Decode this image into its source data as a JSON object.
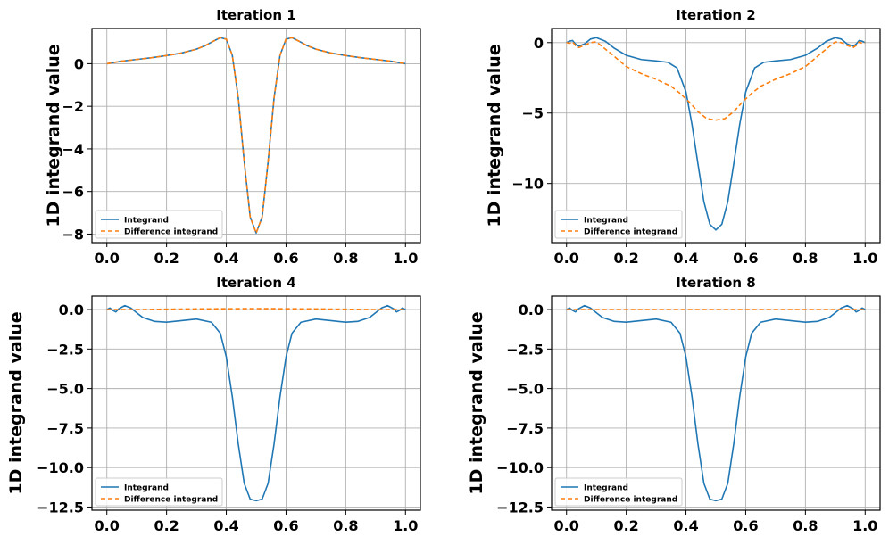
{
  "colors": {
    "integrand": "#1f77b4",
    "difference": "#ff7f0e",
    "grid": "#b0b0b0",
    "axis": "#000000"
  },
  "chart_data": [
    {
      "type": "line",
      "title": "Iteration 1",
      "xlabel": "",
      "ylabel": "1D integrand value",
      "xlim": [
        -0.05,
        1.05
      ],
      "ylim": [
        -8.4,
        1.65
      ],
      "xticks": [
        0.0,
        0.2,
        0.4,
        0.6,
        0.8,
        1.0
      ],
      "xtick_labels": [
        "0.0",
        "0.2",
        "0.4",
        "0.6",
        "0.8",
        "1.0"
      ],
      "yticks": [
        0,
        -2,
        -4,
        -6,
        -8
      ],
      "ytick_labels": [
        "0",
        "−2",
        "−4",
        "−6",
        "−8"
      ],
      "legend": {
        "position": "lower-left",
        "entries": [
          "Integrand",
          "Difference integrand"
        ]
      },
      "series": [
        {
          "name": "Integrand",
          "style": "solid",
          "x": [
            0.0,
            0.05,
            0.1,
            0.15,
            0.2,
            0.25,
            0.3,
            0.33,
            0.36,
            0.38,
            0.4,
            0.42,
            0.44,
            0.46,
            0.48,
            0.5,
            0.52,
            0.54,
            0.56,
            0.58,
            0.6,
            0.62,
            0.64,
            0.67,
            0.7,
            0.75,
            0.8,
            0.85,
            0.9,
            0.95,
            1.0
          ],
          "y": [
            0.0,
            0.12,
            0.2,
            0.28,
            0.38,
            0.5,
            0.68,
            0.85,
            1.08,
            1.22,
            1.15,
            0.4,
            -1.6,
            -4.6,
            -7.2,
            -7.95,
            -7.2,
            -4.6,
            -1.6,
            0.4,
            1.15,
            1.22,
            1.08,
            0.85,
            0.68,
            0.5,
            0.38,
            0.28,
            0.2,
            0.12,
            0.0
          ]
        },
        {
          "name": "Difference integrand",
          "style": "dashed",
          "x": [
            0.0,
            0.05,
            0.1,
            0.15,
            0.2,
            0.25,
            0.3,
            0.33,
            0.36,
            0.38,
            0.4,
            0.42,
            0.44,
            0.46,
            0.48,
            0.5,
            0.52,
            0.54,
            0.56,
            0.58,
            0.6,
            0.62,
            0.64,
            0.67,
            0.7,
            0.75,
            0.8,
            0.85,
            0.9,
            0.95,
            1.0
          ],
          "y": [
            0.0,
            0.12,
            0.2,
            0.28,
            0.38,
            0.5,
            0.68,
            0.85,
            1.08,
            1.22,
            1.15,
            0.4,
            -1.6,
            -4.6,
            -7.2,
            -7.95,
            -7.2,
            -4.6,
            -1.6,
            0.4,
            1.15,
            1.22,
            1.08,
            0.85,
            0.68,
            0.5,
            0.38,
            0.28,
            0.2,
            0.12,
            0.0
          ]
        }
      ]
    },
    {
      "type": "line",
      "title": "Iteration 2",
      "xlabel": "",
      "ylabel": "1D integrand value",
      "xlim": [
        -0.05,
        1.05
      ],
      "ylim": [
        -14.2,
        1.0
      ],
      "xticks": [
        0.0,
        0.2,
        0.4,
        0.6,
        0.8,
        1.0
      ],
      "xtick_labels": [
        "0.0",
        "0.2",
        "0.4",
        "0.6",
        "0.8",
        "1.0"
      ],
      "yticks": [
        0,
        -5,
        -10
      ],
      "ytick_labels": [
        "0",
        "−5",
        "−10"
      ],
      "legend": {
        "position": "lower-left",
        "entries": [
          "Integrand",
          "Difference integrand"
        ]
      },
      "series": [
        {
          "name": "Integrand",
          "style": "solid",
          "x": [
            0.0,
            0.01,
            0.02,
            0.03,
            0.04,
            0.06,
            0.08,
            0.1,
            0.13,
            0.16,
            0.2,
            0.25,
            0.3,
            0.34,
            0.37,
            0.4,
            0.42,
            0.44,
            0.46,
            0.48,
            0.5,
            0.52,
            0.54,
            0.56,
            0.58,
            0.6,
            0.63,
            0.66,
            0.7,
            0.75,
            0.8,
            0.84,
            0.87,
            0.9,
            0.92,
            0.94,
            0.96,
            0.97,
            0.98,
            0.99,
            1.0
          ],
          "y": [
            0.0,
            0.1,
            0.15,
            -0.1,
            -0.25,
            -0.1,
            0.25,
            0.35,
            0.1,
            -0.4,
            -0.9,
            -1.2,
            -1.3,
            -1.4,
            -1.8,
            -3.5,
            -5.8,
            -8.6,
            -11.3,
            -12.9,
            -13.3,
            -12.9,
            -11.3,
            -8.6,
            -5.8,
            -3.5,
            -1.8,
            -1.4,
            -1.3,
            -1.2,
            -0.9,
            -0.4,
            0.1,
            0.35,
            0.25,
            -0.1,
            -0.25,
            -0.1,
            0.15,
            0.1,
            0.0
          ]
        },
        {
          "name": "Difference integrand",
          "style": "dashed",
          "x": [
            0.0,
            0.01,
            0.02,
            0.03,
            0.04,
            0.06,
            0.08,
            0.1,
            0.15,
            0.2,
            0.25,
            0.3,
            0.35,
            0.38,
            0.41,
            0.44,
            0.47,
            0.5,
            0.53,
            0.56,
            0.59,
            0.62,
            0.65,
            0.7,
            0.75,
            0.8,
            0.85,
            0.9,
            0.92,
            0.94,
            0.96,
            0.97,
            0.98,
            0.99,
            1.0
          ],
          "y": [
            0.0,
            -0.05,
            0.05,
            -0.2,
            -0.35,
            -0.2,
            0.0,
            0.05,
            -0.8,
            -1.7,
            -2.2,
            -2.6,
            -3.1,
            -3.6,
            -4.2,
            -4.9,
            -5.4,
            -5.5,
            -5.4,
            -4.9,
            -4.2,
            -3.6,
            -3.1,
            -2.6,
            -2.2,
            -1.7,
            -0.8,
            0.05,
            0.0,
            -0.2,
            -0.35,
            -0.2,
            0.05,
            -0.05,
            0.0
          ]
        }
      ]
    },
    {
      "type": "line",
      "title": "Iteration 4",
      "xlabel": "",
      "ylabel": "1D integrand value",
      "xlim": [
        -0.05,
        1.05
      ],
      "ylim": [
        -12.7,
        0.85
      ],
      "xticks": [
        0.0,
        0.2,
        0.4,
        0.6,
        0.8,
        1.0
      ],
      "xtick_labels": [
        "0.0",
        "0.2",
        "0.4",
        "0.6",
        "0.8",
        "1.0"
      ],
      "yticks": [
        0.0,
        -2.5,
        -5.0,
        -7.5,
        -10.0,
        -12.5
      ],
      "ytick_labels": [
        "0.0",
        "−2.5",
        "−5.0",
        "−7.5",
        "−10.0",
        "−12.5"
      ],
      "legend": {
        "position": "lower-left",
        "entries": [
          "Integrand",
          "Difference integrand"
        ]
      },
      "series": [
        {
          "name": "Integrand",
          "style": "solid",
          "x": [
            0.0,
            0.01,
            0.02,
            0.03,
            0.04,
            0.06,
            0.08,
            0.1,
            0.12,
            0.16,
            0.2,
            0.25,
            0.3,
            0.35,
            0.38,
            0.4,
            0.42,
            0.44,
            0.46,
            0.48,
            0.5,
            0.52,
            0.54,
            0.56,
            0.58,
            0.6,
            0.62,
            0.65,
            0.7,
            0.75,
            0.8,
            0.84,
            0.88,
            0.9,
            0.92,
            0.94,
            0.96,
            0.97,
            0.98,
            0.99,
            1.0
          ],
          "y": [
            0.0,
            0.1,
            -0.05,
            -0.15,
            0.05,
            0.25,
            0.1,
            -0.2,
            -0.5,
            -0.75,
            -0.8,
            -0.7,
            -0.6,
            -0.8,
            -1.5,
            -3.0,
            -5.5,
            -8.5,
            -11.0,
            -12.0,
            -12.1,
            -12.0,
            -11.0,
            -8.5,
            -5.5,
            -3.0,
            -1.5,
            -0.8,
            -0.6,
            -0.7,
            -0.8,
            -0.75,
            -0.5,
            -0.2,
            0.1,
            0.25,
            0.05,
            -0.15,
            -0.05,
            0.1,
            0.0
          ]
        },
        {
          "name": "Difference integrand",
          "style": "dashed",
          "x": [
            0.0,
            0.1,
            0.2,
            0.3,
            0.4,
            0.5,
            0.6,
            0.7,
            0.8,
            0.9,
            1.0
          ],
          "y": [
            0.0,
            0.0,
            0.02,
            0.04,
            0.05,
            0.06,
            0.05,
            0.04,
            0.02,
            0.0,
            0.0
          ]
        }
      ]
    },
    {
      "type": "line",
      "title": "Iteration 8",
      "xlabel": "",
      "ylabel": "1D integrand value",
      "xlim": [
        -0.05,
        1.05
      ],
      "ylim": [
        -12.7,
        0.85
      ],
      "xticks": [
        0.0,
        0.2,
        0.4,
        0.6,
        0.8,
        1.0
      ],
      "xtick_labels": [
        "0.0",
        "0.2",
        "0.4",
        "0.6",
        "0.8",
        "1.0"
      ],
      "yticks": [
        0.0,
        -2.5,
        -5.0,
        -7.5,
        -10.0,
        -12.5
      ],
      "ytick_labels": [
        "0.0",
        "−2.5",
        "−5.0",
        "−7.5",
        "−10.0",
        "−12.5"
      ],
      "legend": {
        "position": "lower-left",
        "entries": [
          "Integrand",
          "Difference integrand"
        ]
      },
      "series": [
        {
          "name": "Integrand",
          "style": "solid",
          "x": [
            0.0,
            0.01,
            0.02,
            0.03,
            0.04,
            0.06,
            0.08,
            0.1,
            0.12,
            0.16,
            0.2,
            0.25,
            0.3,
            0.35,
            0.38,
            0.4,
            0.42,
            0.44,
            0.46,
            0.48,
            0.5,
            0.52,
            0.54,
            0.56,
            0.58,
            0.6,
            0.62,
            0.65,
            0.7,
            0.75,
            0.8,
            0.84,
            0.88,
            0.9,
            0.92,
            0.94,
            0.96,
            0.97,
            0.98,
            0.99,
            1.0
          ],
          "y": [
            0.0,
            0.1,
            -0.05,
            -0.15,
            0.05,
            0.25,
            0.1,
            -0.2,
            -0.5,
            -0.75,
            -0.8,
            -0.7,
            -0.6,
            -0.8,
            -1.5,
            -3.0,
            -5.5,
            -8.5,
            -11.0,
            -12.0,
            -12.1,
            -12.0,
            -11.0,
            -8.5,
            -5.5,
            -3.0,
            -1.5,
            -0.8,
            -0.6,
            -0.7,
            -0.8,
            -0.75,
            -0.5,
            -0.2,
            0.1,
            0.25,
            0.05,
            -0.15,
            -0.05,
            0.1,
            0.0
          ]
        },
        {
          "name": "Difference integrand",
          "style": "dashed",
          "x": [
            0.0,
            0.1,
            0.2,
            0.3,
            0.4,
            0.5,
            0.6,
            0.7,
            0.8,
            0.9,
            1.0
          ],
          "y": [
            0.0,
            0.0,
            0.0,
            0.0,
            0.0,
            0.0,
            0.0,
            0.0,
            0.0,
            0.0,
            0.0
          ]
        }
      ]
    }
  ]
}
